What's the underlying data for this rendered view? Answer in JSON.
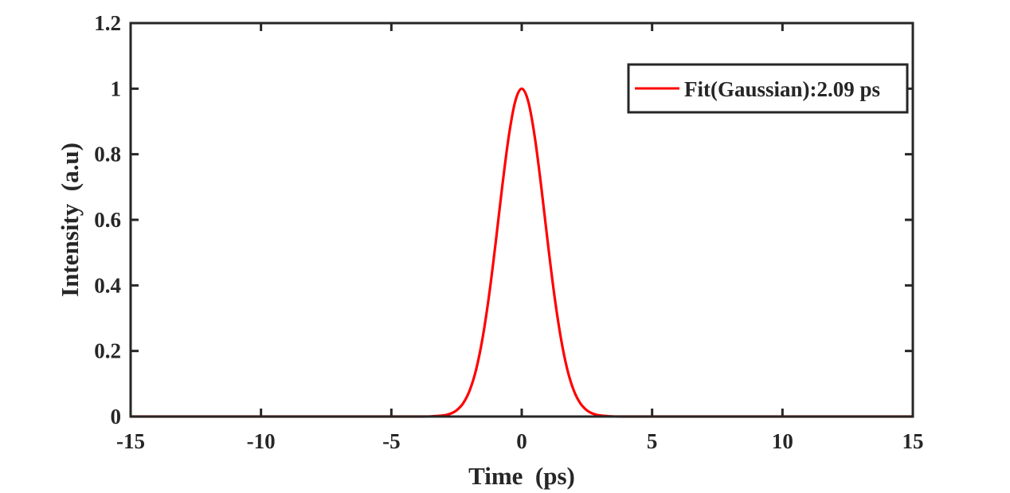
{
  "chart_data": {
    "type": "line",
    "title": "",
    "xlabel": "Time  (ps)",
    "ylabel": "Intensity  (a.u)",
    "xlim": [
      -15,
      15
    ],
    "ylim": [
      0,
      1.2
    ],
    "xticks": [
      -15,
      -10,
      -5,
      0,
      5,
      10,
      15
    ],
    "xtick_labels": [
      "-15",
      "-10",
      "-5",
      "0",
      "5",
      "10",
      "15"
    ],
    "yticks": [
      0,
      0.2,
      0.4,
      0.6,
      0.8,
      1.0,
      1.2
    ],
    "ytick_labels": [
      "0",
      "0.2",
      "0.4",
      "0.6",
      "0.8",
      "1",
      "1.2"
    ],
    "grid": false,
    "legend_position": "top-right",
    "series": [
      {
        "name": "Fit(Gaussian):2.09 ps",
        "color": "#ff0000",
        "x": [
          -15,
          -5,
          -4,
          -3.5,
          -3,
          -2.75,
          -2.5,
          -2.25,
          -2,
          -1.75,
          -1.5,
          -1.25,
          -1,
          -0.75,
          -0.5,
          -0.25,
          0,
          0.25,
          0.5,
          0.75,
          1,
          1.25,
          1.5,
          1.75,
          2,
          2.25,
          2.5,
          2.75,
          3,
          3.5,
          4,
          5,
          15
        ],
        "y": [
          0,
          0,
          4e-05,
          0.00042,
          0.0033,
          0.0082,
          0.0189,
          0.0402,
          0.0789,
          0.143,
          0.24,
          0.371,
          0.53,
          0.7,
          0.853,
          0.961,
          1.0,
          0.961,
          0.853,
          0.7,
          0.53,
          0.371,
          0.24,
          0.143,
          0.0789,
          0.0402,
          0.0189,
          0.0082,
          0.0033,
          0.00042,
          4e-05,
          0,
          0
        ]
      }
    ]
  }
}
